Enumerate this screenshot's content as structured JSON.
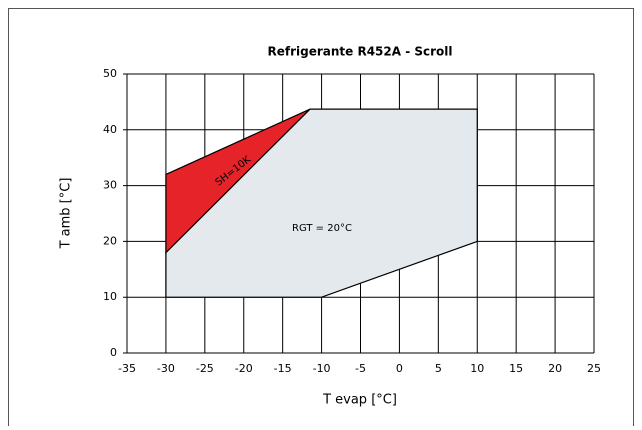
{
  "chart_data": {
    "type": "polygon",
    "title": "Refrigerante R452A - Scroll",
    "x_label": "T evap [°C]",
    "y_label": "T amb [°C]",
    "xlim": [
      -35,
      25
    ],
    "xticks": [
      -35,
      -30,
      -25,
      -20,
      -15,
      -10,
      -5,
      0,
      5,
      10,
      15,
      20,
      25
    ],
    "ylim": [
      0,
      50
    ],
    "yticks": [
      0,
      10,
      20,
      30,
      40,
      50
    ],
    "grid": true,
    "series": [
      {
        "color": "#e3e9ec",
        "x": [
          -30,
          -10,
          10,
          10,
          -11.5,
          -30
        ],
        "y": [
          10,
          10,
          20,
          43.7,
          43.7,
          18
        ]
      },
      {
        "color": "#e52329",
        "x": [
          -30,
          -11.5,
          -30
        ],
        "y": [
          32,
          43.7,
          18
        ]
      }
    ],
    "annotations": [
      "SH=10K",
      "RGT = 20°C"
    ]
  }
}
